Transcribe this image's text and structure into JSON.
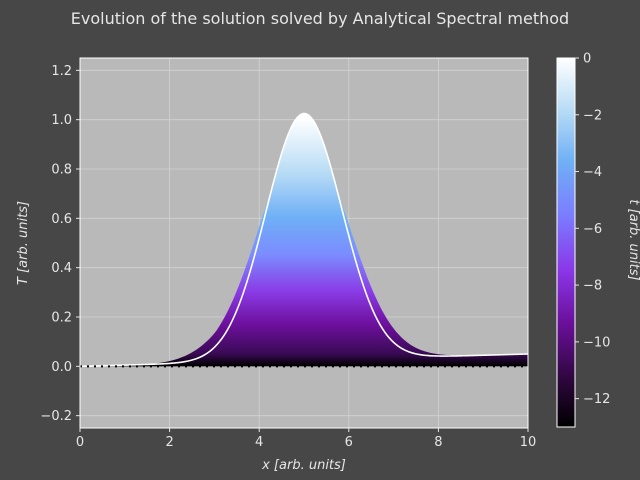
{
  "chart_data": {
    "type": "area",
    "title": "Evolution of the solution solved by Analytical Spectral method",
    "xlabel": "x [arb. units]",
    "ylabel": "T [arb. units]",
    "xlim": [
      0,
      10
    ],
    "ylim": [
      -0.25,
      1.25
    ],
    "x_ticks": [
      "0",
      "2",
      "4",
      "6",
      "8",
      "10"
    ],
    "y_ticks": [
      "−0.2",
      "0.0",
      "0.2",
      "0.4",
      "0.6",
      "0.8",
      "1.0",
      "1.2"
    ],
    "grid": true,
    "series": [
      {
        "t": 0,
        "peak": 1.0,
        "center": 5,
        "width": 1.2,
        "at_x_0": 0.0,
        "at_x_10": 0.05
      },
      {
        "t": -2,
        "peak": 0.91,
        "center": 5,
        "width": 1.4,
        "at_x_0": 0.0,
        "at_x_10": 0.05
      },
      {
        "t": -4,
        "peak": 0.66,
        "center": 5,
        "width": 1.55,
        "at_x_0": 0.0,
        "at_x_10": 0.03
      },
      {
        "t": -6,
        "peak": 0.4,
        "center": 5,
        "width": 1.65,
        "at_x_0": 0.0,
        "at_x_10": 0.01
      },
      {
        "t": -8,
        "peak": 0.2,
        "center": 5,
        "width": 1.8,
        "at_x_0": 0.0,
        "at_x_10": 0.0
      },
      {
        "t": -10,
        "peak": 0.07,
        "center": 5,
        "width": 1.9,
        "at_x_0": 0.0,
        "at_x_10": 0.0
      },
      {
        "t": -13,
        "peak": 0.0,
        "center": 5,
        "width": 2.0,
        "at_x_0": 0.0,
        "at_x_10": 0.0
      }
    ],
    "colorbar": {
      "label": "t [arb. units]",
      "range": [
        -13,
        0
      ],
      "ticks": [
        "0",
        "−2",
        "−4",
        "−6",
        "−8",
        "−10",
        "−12"
      ],
      "colors": [
        "#ffffff",
        "#b8dcf5",
        "#6fb0f6",
        "#7b7bff",
        "#8a35e6",
        "#6a0f9a",
        "#2a0638",
        "#000000"
      ]
    },
    "colors": {
      "background": "#474747",
      "plot_area": "#b9b9b9",
      "grid": "#d2d2d2",
      "text": "#e6e6e6"
    }
  }
}
